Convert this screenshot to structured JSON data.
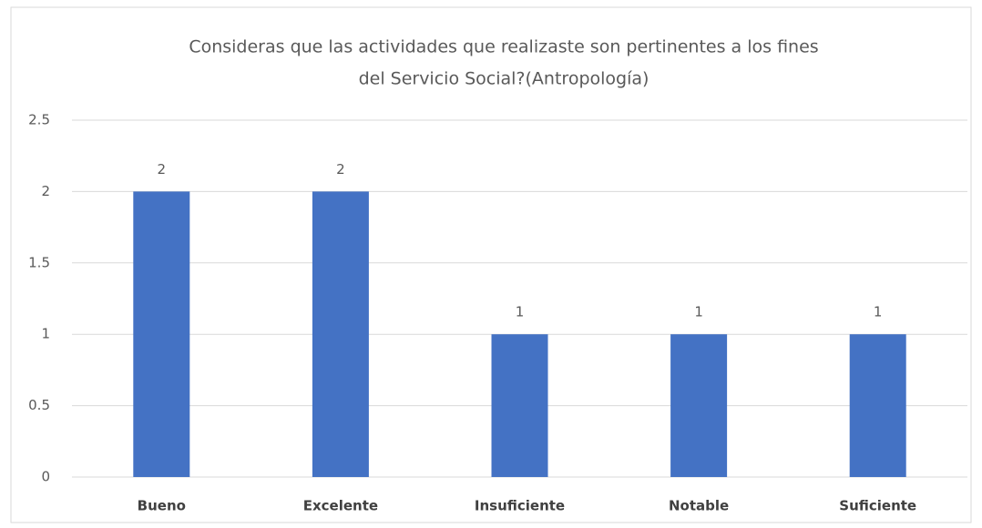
{
  "chart_data": {
    "type": "bar",
    "title": [
      "Consideras que las actividades que realizaste son pertinentes a los fines",
      "del Servicio Social?(Antropología)"
    ],
    "categories": [
      "Bueno",
      "Excelente",
      "Insuficiente",
      "Notable",
      "Suficiente"
    ],
    "values": [
      2,
      2,
      1,
      1,
      1
    ],
    "color": "#4472c4",
    "ylim": [
      0,
      2.5
    ],
    "yticks": [
      0,
      0.5,
      1,
      1.5,
      2,
      2.5
    ],
    "grid": true
  }
}
